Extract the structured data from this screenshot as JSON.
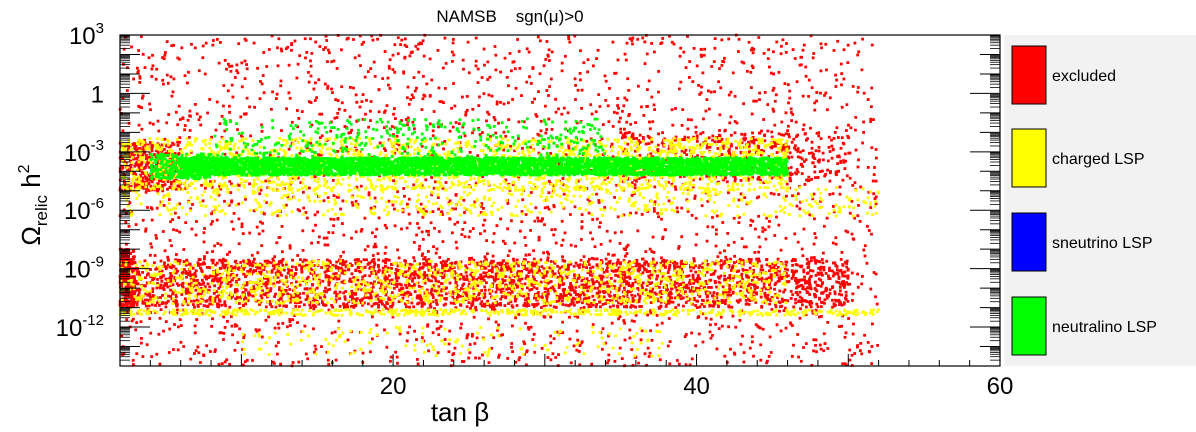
{
  "chart_data": {
    "type": "scatter",
    "title": "NAMSB    sgn(μ)>0",
    "xlabel": "tan β",
    "ylabel": {
      "main": "Ω",
      "sub": "relic",
      "rest": " h",
      "sup": "2"
    },
    "xlim": [
      2,
      60
    ],
    "ylim_log10": [
      -14,
      3
    ],
    "log_y": true,
    "x_ticks": [
      {
        "value": 20,
        "label": "20"
      },
      {
        "value": 40,
        "label": "40"
      },
      {
        "value": 60,
        "label": "60"
      }
    ],
    "y_ticks": [
      {
        "value_log10": 3,
        "base": "10",
        "exp": "3"
      },
      {
        "value_log10": 0,
        "base": "1",
        "exp": ""
      },
      {
        "value_log10": -3,
        "base": "10",
        "exp": "-3"
      },
      {
        "value_log10": -6,
        "base": "10",
        "exp": "-6"
      },
      {
        "value_log10": -9,
        "base": "10",
        "exp": "-9"
      },
      {
        "value_log10": -12,
        "base": "10",
        "exp": "-12"
      }
    ],
    "legend_position": "right",
    "series": [
      {
        "name": "excluded",
        "color": "#ff0000",
        "regions": [
          {
            "x": [
              2,
              52
            ],
            "log_y": [
              -14,
              3
            ],
            "n": 2600
          },
          {
            "x": [
              2,
              50
            ],
            "log_y": [
              -11,
              -8.5
            ],
            "n": 2600
          },
          {
            "x": [
              2,
              6
            ],
            "log_y": [
              -5,
              -2.5
            ],
            "n": 350
          },
          {
            "x": [
              2,
              3
            ],
            "log_y": [
              -11,
              -8
            ],
            "n": 250
          },
          {
            "x": [
              35,
              50
            ],
            "log_y": [
              -4.5,
              -2
            ],
            "n": 400
          }
        ]
      },
      {
        "name": "charged LSP",
        "color": "#ffff00",
        "regions": [
          {
            "x": [
              2,
              46
            ],
            "log_y": [
              -5,
              -2.3
            ],
            "n": 1800
          },
          {
            "x": [
              2,
              46
            ],
            "log_y": [
              -10.8,
              -8.6
            ],
            "n": 1100
          },
          {
            "x": [
              2,
              52
            ],
            "log_y": [
              -11.4,
              -11.1
            ],
            "n": 500
          },
          {
            "x": [
              2,
              52
            ],
            "log_y": [
              -6.3,
              -4.8
            ],
            "n": 500
          },
          {
            "x": [
              10,
              38
            ],
            "log_y": [
              -13.5,
              -12
            ],
            "n": 120
          }
        ]
      },
      {
        "name": "sneutrino LSP",
        "color": "#0000ff",
        "regions": []
      },
      {
        "name": "neutralino LSP",
        "color": "#00ff00",
        "regions": [
          {
            "x": [
              6,
              46
            ],
            "log_y": [
              -4.2,
              -3.3
            ],
            "n": 4500
          },
          {
            "x": [
              8,
              34
            ],
            "log_y": [
              -3.3,
              -1.3
            ],
            "n": 350
          },
          {
            "x": [
              4,
              8
            ],
            "log_y": [
              -4.4,
              -3.1
            ],
            "n": 250
          }
        ]
      }
    ]
  }
}
